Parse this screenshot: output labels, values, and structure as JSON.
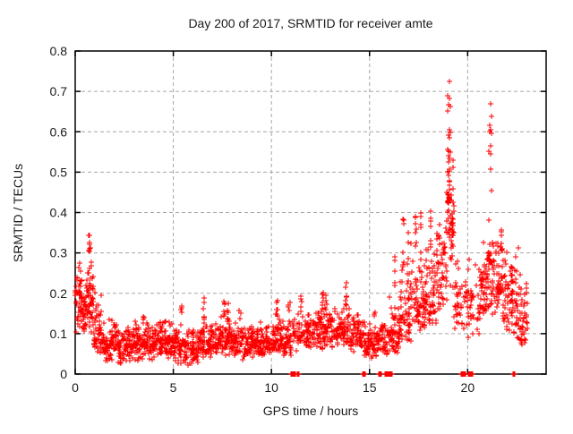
{
  "chart_data": {
    "type": "scatter",
    "title": "Day 200 of 2017, SRMTID for receiver amte",
    "xlabel": "GPS time / hours",
    "ylabel": "SRMTID / TECUs",
    "xlim": [
      0,
      24
    ],
    "ylim": [
      0,
      0.8
    ],
    "xticks": [
      {
        "value": 0,
        "label": "0"
      },
      {
        "value": 5,
        "label": "5"
      },
      {
        "value": 10,
        "label": "10"
      },
      {
        "value": 15,
        "label": "15"
      },
      {
        "value": 20,
        "label": "20"
      }
    ],
    "yticks": [
      {
        "value": 0.0,
        "label": "0"
      },
      {
        "value": 0.1,
        "label": "0.1"
      },
      {
        "value": 0.2,
        "label": "0.2"
      },
      {
        "value": 0.3,
        "label": "0.3"
      },
      {
        "value": 0.4,
        "label": "0.4"
      },
      {
        "value": 0.5,
        "label": "0.5"
      },
      {
        "value": 0.6,
        "label": "0.6"
      },
      {
        "value": 0.7,
        "label": "0.7"
      },
      {
        "value": 0.8,
        "label": "0.8"
      }
    ],
    "grid": true,
    "grid_style": "dashed",
    "legend": false,
    "marker": "plus",
    "colors": {
      "points": "#ff0000",
      "grid": "#a6a6a6",
      "border": "#000000",
      "text": "#1a1a1a",
      "background": "#ffffff"
    },
    "point_cloud": {
      "segment_fields": [
        "t_start",
        "t_end",
        "n",
        "y_low",
        "y_mode",
        "y_high"
      ],
      "segments": [
        [
          0.0,
          0.35,
          50,
          0.09,
          0.18,
          0.28
        ],
        [
          0.35,
          0.6,
          32,
          0.1,
          0.16,
          0.26
        ],
        [
          0.6,
          0.95,
          50,
          0.1,
          0.19,
          0.3
        ],
        [
          0.95,
          1.35,
          50,
          0.05,
          0.11,
          0.22
        ],
        [
          1.35,
          2.0,
          65,
          0.03,
          0.075,
          0.14
        ],
        [
          2.0,
          3.0,
          100,
          0.025,
          0.07,
          0.13
        ],
        [
          3.0,
          4.0,
          100,
          0.03,
          0.08,
          0.14
        ],
        [
          4.0,
          5.0,
          100,
          0.035,
          0.08,
          0.14
        ],
        [
          5.0,
          5.6,
          55,
          0.02,
          0.07,
          0.12
        ],
        [
          5.6,
          6.3,
          68,
          0.02,
          0.06,
          0.12
        ],
        [
          6.3,
          6.7,
          40,
          0.04,
          0.08,
          0.14
        ],
        [
          6.7,
          7.4,
          68,
          0.04,
          0.08,
          0.13
        ],
        [
          7.4,
          7.9,
          50,
          0.04,
          0.09,
          0.15
        ],
        [
          7.9,
          9.0,
          105,
          0.03,
          0.08,
          0.13
        ],
        [
          9.0,
          10.0,
          95,
          0.04,
          0.08,
          0.13
        ],
        [
          10.0,
          10.6,
          55,
          0.05,
          0.09,
          0.15
        ],
        [
          10.6,
          11.1,
          45,
          0.04,
          0.08,
          0.14
        ],
        [
          11.1,
          11.7,
          38,
          0.05,
          0.1,
          0.16
        ],
        [
          11.7,
          12.4,
          65,
          0.06,
          0.1,
          0.16
        ],
        [
          12.4,
          12.9,
          50,
          0.06,
          0.11,
          0.17
        ],
        [
          12.9,
          13.6,
          65,
          0.06,
          0.11,
          0.17
        ],
        [
          13.6,
          14.0,
          40,
          0.07,
          0.11,
          0.18
        ],
        [
          14.0,
          14.7,
          65,
          0.05,
          0.1,
          0.15
        ],
        [
          14.7,
          15.4,
          58,
          0.04,
          0.08,
          0.14
        ],
        [
          15.4,
          16.0,
          48,
          0.03,
          0.08,
          0.14
        ],
        [
          16.0,
          16.5,
          55,
          0.05,
          0.1,
          0.2
        ],
        [
          16.5,
          17.1,
          60,
          0.08,
          0.14,
          0.3
        ],
        [
          17.1,
          17.8,
          60,
          0.1,
          0.17,
          0.33
        ],
        [
          17.8,
          18.4,
          60,
          0.12,
          0.2,
          0.35
        ],
        [
          18.4,
          18.95,
          55,
          0.15,
          0.25,
          0.4
        ],
        [
          18.95,
          19.3,
          55,
          0.2,
          0.4,
          0.56
        ],
        [
          19.3,
          19.9,
          35,
          0.08,
          0.17,
          0.3
        ],
        [
          19.9,
          20.6,
          40,
          0.08,
          0.18,
          0.32
        ],
        [
          20.6,
          21.0,
          45,
          0.12,
          0.21,
          0.33
        ],
        [
          21.0,
          21.35,
          40,
          0.12,
          0.24,
          0.36
        ],
        [
          21.35,
          22.0,
          65,
          0.12,
          0.21,
          0.34
        ],
        [
          22.0,
          22.45,
          50,
          0.1,
          0.19,
          0.33
        ],
        [
          22.45,
          23.05,
          45,
          0.06,
          0.14,
          0.27
        ]
      ],
      "column_fields": [
        "t_center",
        "t_width",
        "y_low",
        "y_high",
        "n"
      ],
      "columns": [
        [
          0.72,
          0.1,
          0.29,
          0.345,
          8
        ],
        [
          3.5,
          0.08,
          0.12,
          0.155,
          4
        ],
        [
          5.4,
          0.08,
          0.12,
          0.17,
          5
        ],
        [
          6.55,
          0.08,
          0.13,
          0.19,
          7
        ],
        [
          7.6,
          0.07,
          0.14,
          0.19,
          6
        ],
        [
          7.78,
          0.07,
          0.13,
          0.18,
          5
        ],
        [
          8.4,
          0.07,
          0.12,
          0.165,
          4
        ],
        [
          10.3,
          0.09,
          0.13,
          0.19,
          6
        ],
        [
          10.9,
          0.07,
          0.13,
          0.185,
          5
        ],
        [
          11.5,
          0.07,
          0.14,
          0.195,
          5
        ],
        [
          12.6,
          0.08,
          0.15,
          0.21,
          6
        ],
        [
          12.78,
          0.07,
          0.14,
          0.2,
          5
        ],
        [
          13.8,
          0.08,
          0.16,
          0.235,
          7
        ],
        [
          15.25,
          0.05,
          0.1,
          0.155,
          4
        ],
        [
          16.3,
          0.08,
          0.18,
          0.3,
          6
        ],
        [
          16.7,
          0.08,
          0.25,
          0.39,
          7
        ],
        [
          16.95,
          0.07,
          0.22,
          0.35,
          6
        ],
        [
          17.35,
          0.08,
          0.3,
          0.42,
          7
        ],
        [
          17.6,
          0.07,
          0.28,
          0.4,
          6
        ],
        [
          18.1,
          0.08,
          0.3,
          0.42,
          7
        ],
        [
          19.05,
          0.1,
          0.42,
          0.56,
          12
        ],
        [
          21.75,
          0.08,
          0.3,
          0.36,
          6
        ],
        [
          22.75,
          0.07,
          0.07,
          0.25,
          10
        ]
      ],
      "outlier_fields": [
        "t",
        "y"
      ],
      "outliers": [
        [
          19.05,
          0.725
        ],
        [
          19.0,
          0.69
        ],
        [
          19.07,
          0.683
        ],
        [
          19.02,
          0.667
        ],
        [
          19.1,
          0.662
        ],
        [
          19.0,
          0.652
        ],
        [
          19.05,
          0.605
        ],
        [
          19.1,
          0.598
        ],
        [
          19.02,
          0.592
        ],
        [
          19.08,
          0.585
        ],
        [
          18.98,
          0.556
        ],
        [
          19.12,
          0.549
        ],
        [
          21.15,
          0.67
        ],
        [
          21.2,
          0.638
        ],
        [
          21.14,
          0.617
        ],
        [
          21.18,
          0.606
        ],
        [
          21.11,
          0.601
        ],
        [
          21.21,
          0.596
        ],
        [
          21.16,
          0.566
        ],
        [
          21.1,
          0.552
        ],
        [
          21.18,
          0.545
        ],
        [
          21.15,
          0.507
        ],
        [
          21.2,
          0.455
        ],
        [
          21.1,
          0.382
        ],
        [
          22.6,
          0.312
        ]
      ],
      "zero_run_fields": [
        "t_start",
        "t_end",
        "n"
      ],
      "zero_runs": [
        [
          11.0,
          11.2,
          10
        ],
        [
          11.3,
          11.42,
          8
        ],
        [
          14.65,
          14.8,
          8
        ],
        [
          15.45,
          15.6,
          8
        ],
        [
          15.8,
          16.15,
          20
        ],
        [
          19.68,
          19.9,
          10
        ],
        [
          20.05,
          20.28,
          10
        ],
        [
          22.3,
          22.42,
          8
        ]
      ]
    }
  }
}
